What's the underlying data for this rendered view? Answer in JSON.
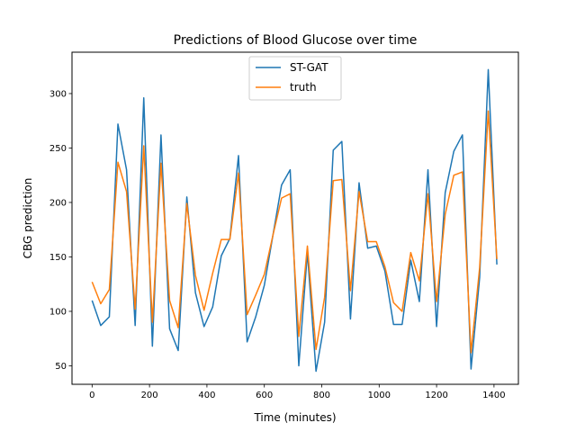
{
  "chart_data": {
    "type": "line",
    "title": "Predictions of Blood Glucose over time",
    "xlabel": "Time (minutes)",
    "ylabel": "CBG prediction",
    "xlim": [
      -70,
      1485
    ],
    "ylim": [
      33,
      338
    ],
    "xticks": [
      0,
      200,
      400,
      600,
      800,
      1000,
      1200,
      1400
    ],
    "yticks": [
      50,
      100,
      150,
      200,
      250,
      300
    ],
    "grid": false,
    "legend_position": "top-center",
    "x": [
      0,
      30,
      60,
      90,
      120,
      150,
      180,
      210,
      240,
      270,
      300,
      330,
      360,
      390,
      420,
      450,
      480,
      510,
      540,
      570,
      600,
      630,
      660,
      690,
      720,
      750,
      780,
      810,
      840,
      870,
      900,
      930,
      960,
      990,
      1020,
      1050,
      1080,
      1110,
      1140,
      1170,
      1200,
      1230,
      1260,
      1290,
      1320,
      1350,
      1380,
      1410
    ],
    "series": [
      {
        "name": "ST-GAT",
        "color": "#1f77b4",
        "values": [
          110,
          87,
          95,
          272,
          230,
          87,
          296,
          68,
          262,
          84,
          64,
          205,
          117,
          86,
          104,
          151,
          167,
          243,
          72,
          95,
          124,
          170,
          216,
          230,
          50,
          154,
          45,
          90,
          248,
          256,
          93,
          218,
          158,
          160,
          137,
          88,
          88,
          147,
          109,
          230,
          86,
          209,
          247,
          262,
          47,
          131,
          322,
          143
        ]
      },
      {
        "name": "truth",
        "color": "#ff7f0e",
        "values": [
          127,
          107,
          120,
          237,
          210,
          102,
          252,
          90,
          236,
          110,
          85,
          199,
          133,
          101,
          135,
          166,
          166,
          227,
          97,
          115,
          134,
          170,
          204,
          208,
          77,
          160,
          65,
          113,
          220,
          221,
          119,
          210,
          164,
          164,
          141,
          108,
          100,
          154,
          128,
          208,
          109,
          189,
          225,
          228,
          62,
          140,
          284,
          148
        ]
      }
    ]
  }
}
